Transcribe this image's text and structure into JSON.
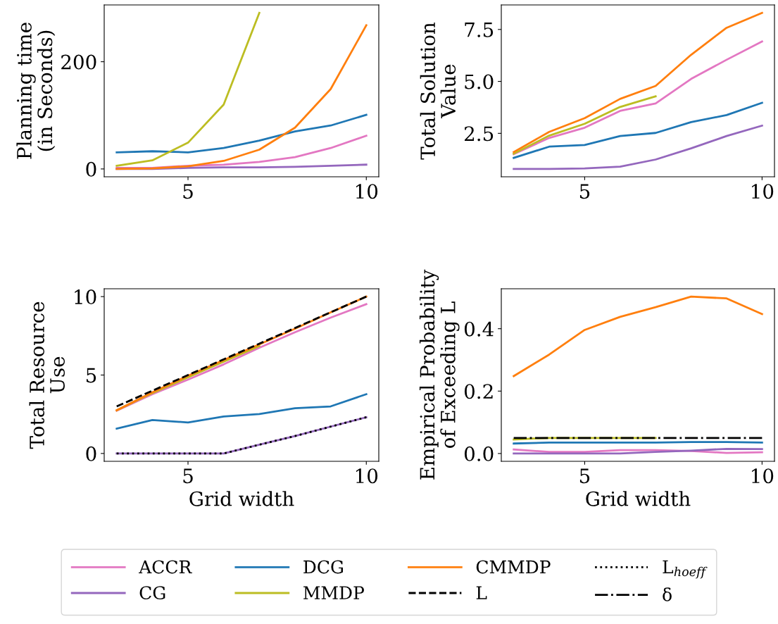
{
  "chart_data": [
    {
      "type": "line",
      "ylabel": "Planning time\n(in Seconds)",
      "x": [
        3,
        4,
        5,
        6,
        7,
        8,
        9,
        10
      ],
      "xlim": [
        2.65,
        10.35
      ],
      "xticks": [
        5,
        10
      ],
      "ylim": [
        -14.6,
        305.9
      ],
      "yticks": [
        0,
        200
      ],
      "grid": false,
      "legend": "bottom",
      "line_style": "solid",
      "marker": "none",
      "series": [
        {
          "name": "ACCR",
          "color": "#e377c2",
          "values": [
            2,
            2,
            6,
            8,
            13,
            22,
            39,
            62
          ]
        },
        {
          "name": "CG",
          "color": "#9467bd",
          "values": [
            0,
            0,
            2,
            3,
            3,
            4,
            6,
            8
          ]
        },
        {
          "name": "DCG",
          "color": "#1f77b4",
          "values": [
            31,
            33,
            31,
            39,
            53,
            70,
            81,
            101
          ]
        },
        {
          "name": "MMDP",
          "color": "#bcbd22",
          "x": [
            3,
            4,
            5,
            6,
            7
          ],
          "values": [
            6,
            16,
            49,
            120,
            291
          ]
        },
        {
          "name": "CMMDP",
          "color": "#ff7f0e",
          "values": [
            0,
            1,
            5,
            15,
            36,
            77,
            149,
            268
          ]
        }
      ]
    },
    {
      "type": "line",
      "ylabel": "Total Solution\nValue",
      "x": [
        3,
        4,
        5,
        6,
        7,
        8,
        9,
        10
      ],
      "xlim": [
        2.65,
        10.35
      ],
      "xticks": [
        5,
        10
      ],
      "ylim": [
        0.41,
        8.68
      ],
      "yticks": [
        2.5,
        {
          "value": 5,
          "label": "5.0"
        },
        7.5
      ],
      "grid": false,
      "legend": "bottom",
      "line_style": "solid",
      "marker": "none",
      "series": [
        {
          "name": "ACCR",
          "color": "#e377c2",
          "values": [
            1.5,
            2.28,
            2.77,
            3.58,
            3.94,
            5.12,
            6.04,
            6.92
          ]
        },
        {
          "name": "CG",
          "color": "#9467bd",
          "values": [
            0.79,
            0.79,
            0.81,
            0.9,
            1.24,
            1.78,
            2.37,
            2.87
          ]
        },
        {
          "name": "DCG",
          "color": "#1f77b4",
          "values": [
            1.32,
            1.86,
            1.94,
            2.37,
            2.52,
            3.04,
            3.38,
            3.97
          ]
        },
        {
          "name": "MMDP",
          "color": "#bcbd22",
          "x": [
            3,
            4,
            5,
            6,
            7
          ],
          "values": [
            1.52,
            2.39,
            2.96,
            3.77,
            4.28
          ]
        },
        {
          "name": "CMMDP",
          "color": "#ff7f0e",
          "values": [
            1.6,
            2.57,
            3.23,
            4.16,
            4.78,
            6.28,
            7.58,
            8.3
          ]
        }
      ]
    },
    {
      "type": "line",
      "ylabel": "Total Resource\nUse",
      "xlabel": "Grid width",
      "x": [
        3,
        4,
        5,
        6,
        7,
        8,
        9,
        10
      ],
      "xlim": [
        2.65,
        10.35
      ],
      "xticks": [
        5,
        10
      ],
      "ylim": [
        -0.5,
        10.5
      ],
      "yticks": [
        0,
        5,
        10
      ],
      "grid": false,
      "legend": "bottom",
      "line_style": "solid",
      "marker": "none",
      "series": [
        {
          "name": "ACCR",
          "color": "#e377c2",
          "values": [
            2.73,
            3.78,
            4.71,
            5.68,
            6.74,
            7.73,
            8.66,
            9.52
          ]
        },
        {
          "name": "CG",
          "color": "#9467bd",
          "values": [
            0,
            0,
            0,
            0,
            0.56,
            1.11,
            1.71,
            2.31
          ]
        },
        {
          "name": "DCG",
          "color": "#1f77b4",
          "values": [
            1.58,
            2.13,
            1.98,
            2.36,
            2.51,
            2.88,
            3.0,
            3.78
          ]
        },
        {
          "name": "MMDP",
          "color": "#bcbd22",
          "x": [
            3,
            4,
            5,
            6,
            7
          ],
          "values": [
            2.75,
            3.85,
            4.85,
            5.85,
            6.85
          ]
        },
        {
          "name": "CMMDP",
          "color": "#ff7f0e",
          "values": [
            2.75,
            3.9,
            4.95,
            5.95,
            6.95,
            7.95,
            9,
            10
          ]
        },
        {
          "name": "L",
          "color": "#000000",
          "line_style": "dashed",
          "values": [
            3,
            4,
            5,
            6,
            7,
            8,
            9,
            10
          ]
        },
        {
          "name": "L$_{hoeff}$",
          "color": "#000000",
          "line_style": "dotted",
          "values": [
            0,
            0,
            0,
            0,
            0.56,
            1.11,
            1.71,
            2.31
          ]
        }
      ]
    },
    {
      "type": "line",
      "ylabel": "Empirical Probability\nof Exceeding L",
      "xlabel": "Grid width",
      "x": [
        3,
        4,
        5,
        6,
        7,
        8,
        9,
        10
      ],
      "xlim": [
        2.65,
        10.35
      ],
      "xticks": [
        5,
        10
      ],
      "ylim": [
        -0.025,
        0.528
      ],
      "yticks": [
        {
          "value": 0,
          "label": "0.0"
        },
        0.2,
        0.4
      ],
      "grid": false,
      "legend": "bottom",
      "line_style": "solid",
      "marker": "none",
      "series": [
        {
          "name": "ACCR",
          "color": "#e377c2",
          "values": [
            0.013,
            0.005,
            0.005,
            0.011,
            0.011,
            0.008,
            0.002,
            0.004
          ]
        },
        {
          "name": "CG",
          "color": "#9467bd",
          "values": [
            0,
            0,
            0,
            0,
            0.005,
            0.009,
            0.015,
            0.014
          ]
        },
        {
          "name": "DCG",
          "color": "#1f77b4",
          "values": [
            0.032,
            0.035,
            0.035,
            0.035,
            0.035,
            0.037,
            0.037,
            0.035
          ]
        },
        {
          "name": "MMDP",
          "color": "#bcbd22",
          "x": [
            3,
            4,
            5,
            6,
            7
          ],
          "values": [
            0.045,
            0.05,
            0.05,
            0.05,
            0.05
          ]
        },
        {
          "name": "CMMDP",
          "color": "#ff7f0e",
          "values": [
            0.248,
            0.317,
            0.396,
            0.438,
            0.469,
            0.503,
            0.497,
            0.447
          ]
        },
        {
          "name": "δ",
          "color": "#000000",
          "line_style": "dashdot",
          "values": [
            0.05,
            0.05,
            0.05,
            0.05,
            0.05,
            0.05,
            0.05,
            0.05
          ]
        }
      ]
    }
  ]
}
